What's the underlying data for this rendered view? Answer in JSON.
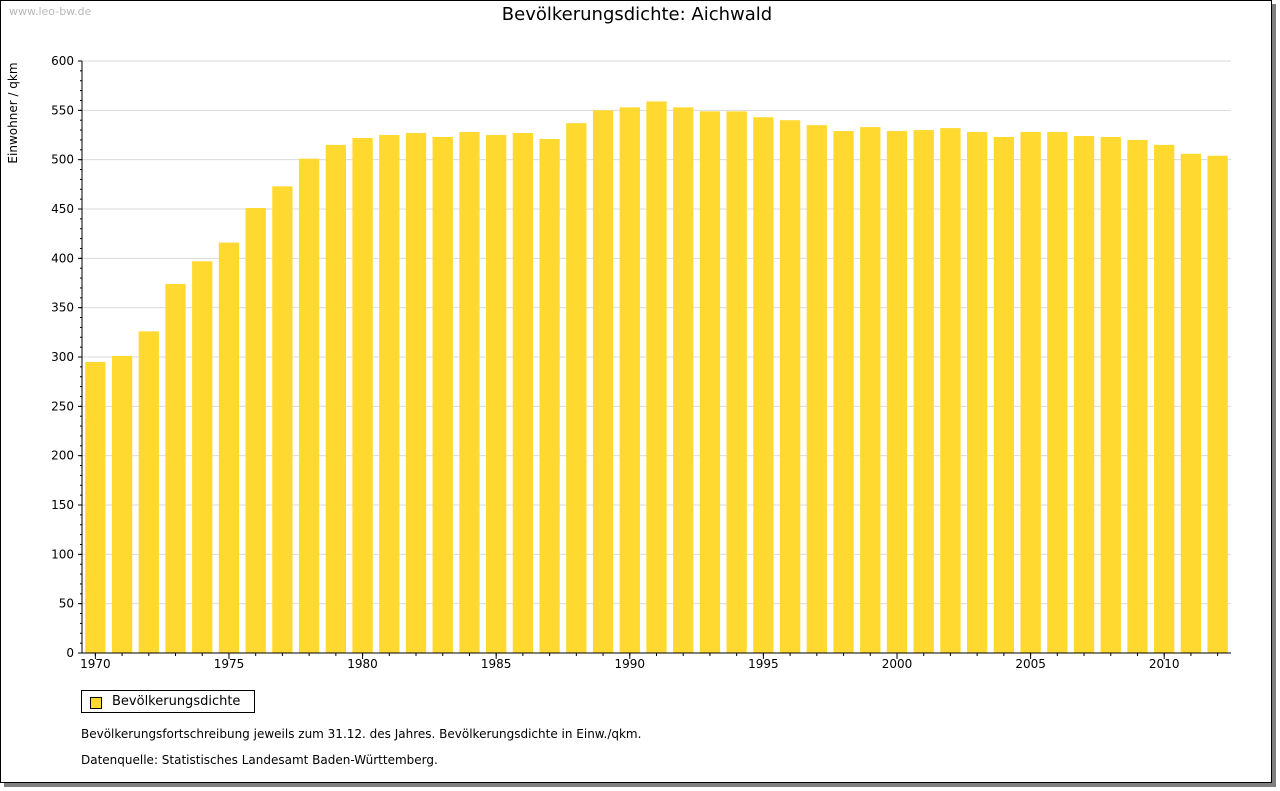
{
  "watermark": "www.leo-bw.de",
  "footnote": "Bevölkerungsfortschreibung jeweils zum 31.12. des Jahres. Bevölkerungsdichte in Einw./qkm.",
  "source": "Datenquelle: Statistisches Landesamt Baden-Württemberg.",
  "chart_data": {
    "type": "bar",
    "title": "Bevölkerungsdichte: Aichwald",
    "xlabel": "",
    "ylabel": "Einwohner / qkm",
    "ylim": [
      0,
      600
    ],
    "yticks": [
      0,
      50,
      100,
      150,
      200,
      250,
      300,
      350,
      400,
      450,
      500,
      550,
      600
    ],
    "xtick_labels": [
      "1970",
      "1975",
      "1980",
      "1985",
      "1990",
      "1995",
      "2000",
      "2005",
      "2010"
    ],
    "grid": "horizontal",
    "legend_position": "bottom-left",
    "bar_color": "#ffd92f",
    "series": [
      {
        "name": "Bevölkerungsdichte",
        "categories": [
          1970,
          1971,
          1972,
          1973,
          1974,
          1975,
          1976,
          1977,
          1978,
          1979,
          1980,
          1981,
          1982,
          1983,
          1984,
          1985,
          1986,
          1987,
          1988,
          1989,
          1990,
          1991,
          1992,
          1993,
          1994,
          1995,
          1996,
          1997,
          1998,
          1999,
          2000,
          2001,
          2002,
          2003,
          2004,
          2005,
          2006,
          2007,
          2008,
          2009,
          2010,
          2011,
          2012
        ],
        "values": [
          295,
          301,
          326,
          374,
          397,
          416,
          451,
          473,
          501,
          515,
          522,
          525,
          527,
          523,
          528,
          525,
          527,
          521,
          537,
          550,
          553,
          559,
          553,
          549,
          549,
          543,
          540,
          535,
          529,
          533,
          529,
          530,
          532,
          528,
          523,
          528,
          528,
          524,
          523,
          520,
          515,
          506,
          504
        ]
      }
    ]
  }
}
